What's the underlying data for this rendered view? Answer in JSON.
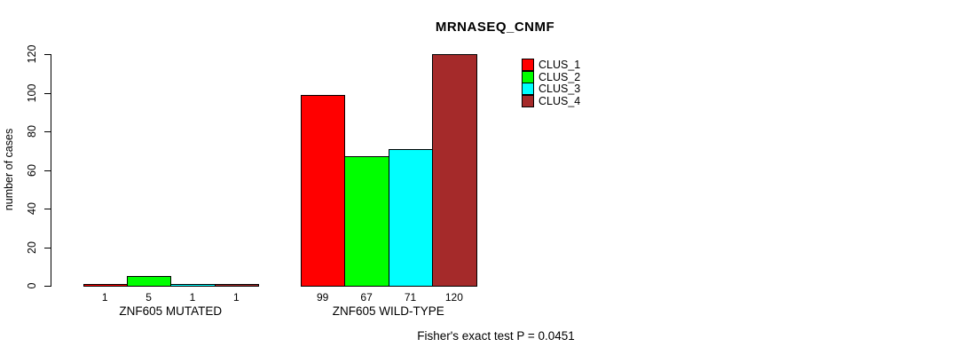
{
  "figure": {
    "title": "MRNASEQ_CNMF",
    "footer": "Fisher's exact test P = 0.0451"
  },
  "chart_data": {
    "type": "bar",
    "title": "MRNASEQ_CNMF",
    "xlabel": "",
    "ylabel": "number of cases",
    "ylim": [
      0,
      120
    ],
    "yticks": [
      0,
      20,
      40,
      60,
      80,
      100,
      120
    ],
    "grid": false,
    "legend_position": "top-right-inside",
    "background_color": "#FFFFFF",
    "bar_border_color": "#000000",
    "categories": [
      "ZNF605 MUTATED",
      "ZNF605 WILD-TYPE"
    ],
    "series": [
      {
        "name": "CLUS_1",
        "color": "#FF0000",
        "values": [
          1,
          99
        ]
      },
      {
        "name": "CLUS_2",
        "color": "#00FF00",
        "values": [
          5,
          67
        ]
      },
      {
        "name": "CLUS_3",
        "color": "#00FFFF",
        "values": [
          1,
          71
        ]
      },
      {
        "name": "CLUS_4",
        "color": "#A52A2A",
        "values": [
          1,
          120
        ]
      }
    ],
    "bar_value_labels": [
      [
        "1",
        "5",
        "1",
        "1"
      ],
      [
        "99",
        "67",
        "71",
        "120"
      ]
    ],
    "annotation": "Fisher's exact test P = 0.0451"
  }
}
